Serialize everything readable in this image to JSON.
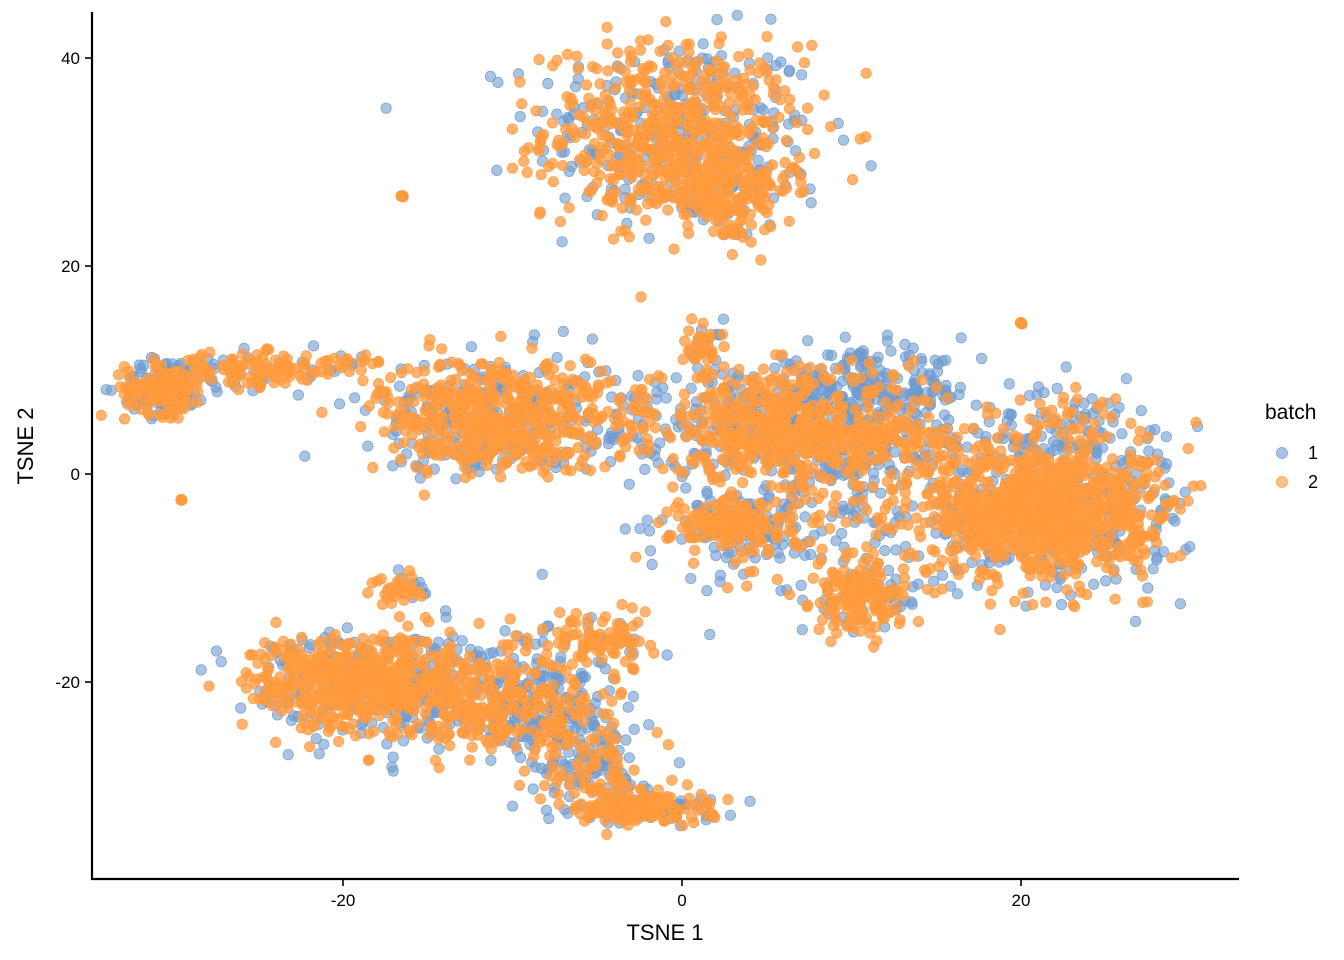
{
  "chart_data": {
    "type": "scatter",
    "title": "",
    "xlabel": "TSNE 1",
    "ylabel": "TSNE 2",
    "xlim": [
      -35.5,
      32.5
    ],
    "ylim": [
      -38.9,
      44.4
    ],
    "x_ticks": [
      -20,
      0,
      20
    ],
    "x_tick_labels": [
      "-20",
      "0",
      "20"
    ],
    "y_ticks": [
      -20,
      0,
      20,
      40
    ],
    "y_tick_labels": [
      "-20",
      "0",
      "20",
      "40"
    ],
    "grid": false,
    "legend": {
      "title": "batch",
      "position": "right",
      "entries": [
        {
          "label": "1",
          "color": "#6F9BD1"
        },
        {
          "label": "2",
          "color": "#FF9A3D"
        }
      ]
    },
    "series": [
      {
        "name": "1",
        "color": "#6F9BD1",
        "opacity": 0.6
      },
      {
        "name": "2",
        "color": "#FF9A3D",
        "opacity": 0.75
      }
    ],
    "clusters": [
      {
        "id": "top",
        "cx": -0.5,
        "cy": 33,
        "sx": 4.2,
        "sy": 4.6,
        "n1": 260,
        "n2": 520
      },
      {
        "id": "top-lower-arm",
        "cx": 2,
        "cy": 27.5,
        "sx": 2.5,
        "sy": 2.2,
        "n1": 60,
        "n2": 180
      },
      {
        "id": "top-tail",
        "cx": 2.8,
        "cy": 23.2,
        "sx": 0.8,
        "sy": 0.3,
        "n1": 6,
        "n2": 14
      },
      {
        "id": "left-blob",
        "cx": -30.5,
        "cy": 8.3,
        "sx": 1.3,
        "sy": 1.4,
        "n1": 90,
        "n2": 140
      },
      {
        "id": "left-arm",
        "cx": -25,
        "cy": 10,
        "sx": 3,
        "sy": 0.9,
        "n1": 40,
        "n2": 110
      },
      {
        "id": "left-arm-tip",
        "cx": -19.5,
        "cy": 10.8,
        "sx": 1.2,
        "sy": 0.4,
        "n1": 4,
        "n2": 10
      },
      {
        "id": "mid-left",
        "cx": -11,
        "cy": 6.5,
        "sx": 3.8,
        "sy": 2.6,
        "n1": 180,
        "n2": 380
      },
      {
        "id": "mid-left-lower",
        "cx": -11,
        "cy": 2.5,
        "sx": 3,
        "sy": 1.2,
        "n1": 60,
        "n2": 120
      },
      {
        "id": "bridge",
        "cx": -3,
        "cy": 5,
        "sx": 2.2,
        "sy": 2.5,
        "n1": 30,
        "n2": 40
      },
      {
        "id": "center",
        "cx": 5,
        "cy": 5,
        "sx": 3.5,
        "sy": 2.8,
        "n1": 200,
        "n2": 320
      },
      {
        "id": "center-spike",
        "cx": 1.2,
        "cy": 12,
        "sx": 0.6,
        "sy": 1.5,
        "n1": 15,
        "n2": 35
      },
      {
        "id": "center-upper-blue",
        "cx": 11,
        "cy": 8,
        "sx": 3,
        "sy": 1.8,
        "n1": 220,
        "n2": 30
      },
      {
        "id": "center-right-band",
        "cx": 10,
        "cy": 3,
        "sx": 3.5,
        "sy": 1.8,
        "n1": 90,
        "n2": 200
      },
      {
        "id": "lower-center",
        "cx": 3,
        "cy": -5,
        "sx": 2,
        "sy": 1.5,
        "n1": 90,
        "n2": 150
      },
      {
        "id": "scatter-field",
        "cx": 8,
        "cy": -3,
        "sx": 4.5,
        "sy": 4.5,
        "n1": 160,
        "n2": 90
      },
      {
        "id": "lower-mid",
        "cx": 10.5,
        "cy": -12,
        "sx": 1.5,
        "sy": 1.8,
        "n1": 40,
        "n2": 150
      },
      {
        "id": "right-big",
        "cx": 21,
        "cy": -3.5,
        "sx": 3.6,
        "sy": 3.6,
        "n1": 320,
        "n2": 900
      },
      {
        "id": "right-upper",
        "cx": 22,
        "cy": 5,
        "sx": 3.5,
        "sy": 1.8,
        "n1": 80,
        "n2": 40
      },
      {
        "id": "right-edge",
        "cx": 26.5,
        "cy": -3,
        "sx": 1.5,
        "sy": 3.2,
        "n1": 50,
        "n2": 40
      },
      {
        "id": "bottom-left",
        "cx": -20,
        "cy": -20,
        "sx": 3,
        "sy": 2.5,
        "n1": 180,
        "n2": 380
      },
      {
        "id": "bottom-left-mid",
        "cx": -14,
        "cy": -21,
        "sx": 3.5,
        "sy": 2.8,
        "n1": 180,
        "n2": 330
      },
      {
        "id": "bottom-mid-blue",
        "cx": -8,
        "cy": -23,
        "sx": 2,
        "sy": 2.5,
        "n1": 150,
        "n2": 90
      },
      {
        "id": "bottom-diagonal",
        "cx": -5,
        "cy": -28,
        "sx": 1.5,
        "sy": 2,
        "n1": 90,
        "n2": 60
      },
      {
        "id": "bottom-tail",
        "cx": -2.5,
        "cy": -32,
        "sx": 2.3,
        "sy": 0.9,
        "n1": 80,
        "n2": 150
      },
      {
        "id": "bottom-top-nub",
        "cx": -16.5,
        "cy": -11,
        "sx": 0.8,
        "sy": 1,
        "n1": 8,
        "n2": 30
      },
      {
        "id": "bottom-right-arm",
        "cx": -5,
        "cy": -16,
        "sx": 2,
        "sy": 1.4,
        "n1": 20,
        "n2": 90
      }
    ],
    "singletons": [
      {
        "x": -16.5,
        "y": 26.7,
        "batch": "2",
        "count": 6
      },
      {
        "x": 20.0,
        "y": 14.5,
        "batch": "2",
        "count": 6
      },
      {
        "x": -29.5,
        "y": -2.5,
        "batch": "2",
        "count": 5
      },
      {
        "x": -15.2,
        "y": -2.0,
        "batch": "2",
        "count": 1
      },
      {
        "x": -18.5,
        "y": -27.5,
        "batch": "2",
        "count": 2
      },
      {
        "x": -30,
        "y": 6.0,
        "batch": "1",
        "count": 1
      }
    ]
  },
  "axes": {
    "x_title": "TSNE 1",
    "y_title": "TSNE 2"
  },
  "legend": {
    "title": "batch",
    "items": [
      {
        "label": "1",
        "color": "#6F9BD1"
      },
      {
        "label": "2",
        "color": "#FF9A3D"
      }
    ]
  }
}
